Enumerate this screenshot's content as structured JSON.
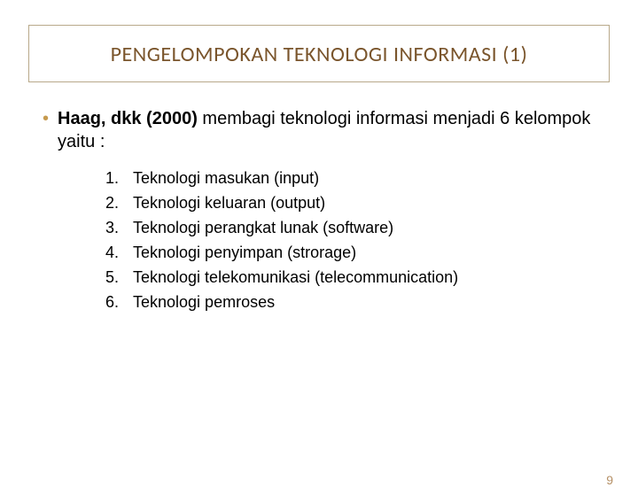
{
  "colors": {
    "title_text": "#7a552c",
    "title_border": "#b8a98a",
    "bullet": "#c69a4e",
    "body_text": "#000000",
    "page_num": "#b59066",
    "background": "#ffffff"
  },
  "title": "PENGELOMPOKAN TEKNOLOGI INFORMASI (1)",
  "lead": {
    "strong": "Haag, dkk (2000)",
    "rest": " membagi  teknologi informasi menjadi 6 kelompok yaitu :"
  },
  "list": [
    "Teknologi masukan (input)",
    "Teknologi keluaran (output)",
    "Teknologi perangkat lunak (software)",
    "Teknologi penyimpan (strorage)",
    "Teknologi telekomunikasi (telecommunication)",
    "Teknologi pemroses"
  ],
  "page_number": "9"
}
